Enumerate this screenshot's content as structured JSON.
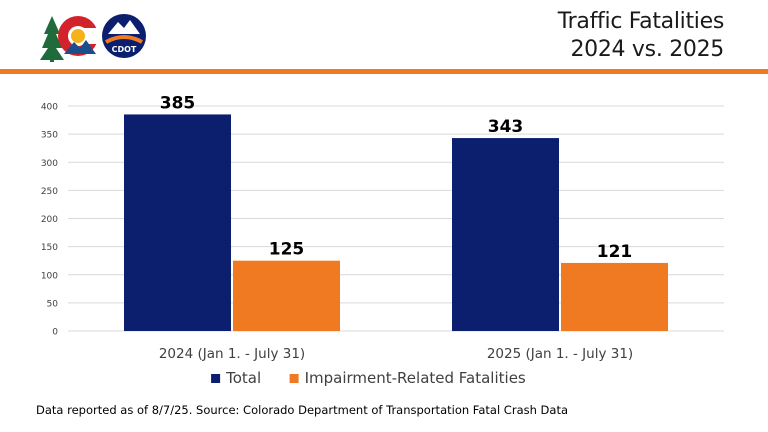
{
  "title": {
    "line1": "Traffic Fatalities",
    "line2": "2024 vs. 2025"
  },
  "logos": {
    "cdot_text": "CDOT"
  },
  "colors": {
    "accent": "#f07a22",
    "navy": "#0b1f6e",
    "orange": "#f07a22",
    "grid": "#d9d9d9"
  },
  "chart_data": {
    "type": "bar",
    "categories": [
      "2024 (Jan 1. - July 31)",
      "2025 (Jan 1. - July 31)"
    ],
    "series": [
      {
        "name": "Total",
        "values": [
          385,
          343
        ],
        "color": "#0b1f6e"
      },
      {
        "name": "Impairment-Related Fatalities",
        "values": [
          125,
          121
        ],
        "color": "#f07a22"
      }
    ],
    "ylim": [
      0,
      400
    ],
    "yticks": [
      0,
      50,
      100,
      150,
      200,
      250,
      300,
      350,
      400
    ],
    "grid": true,
    "legend": "bottom",
    "data_labels": true
  },
  "footnote": "Data reported as of 8/7/25. Source: Colorado Department of Transportation Fatal Crash Data"
}
